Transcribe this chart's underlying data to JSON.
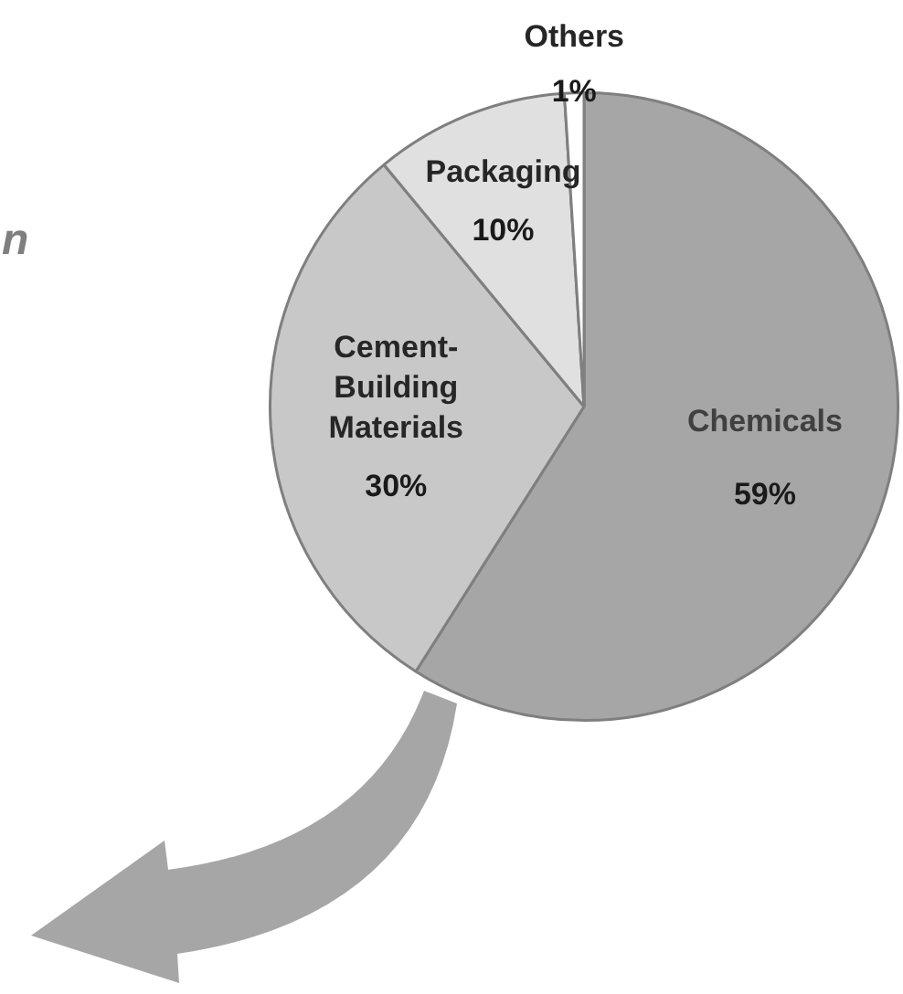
{
  "chart_data": {
    "type": "pie",
    "categories": [
      "Chemicals",
      "Cement-Building Materials",
      "Packaging",
      "Others"
    ],
    "values": [
      59,
      30,
      10,
      1
    ],
    "colors": [
      "#a6a6a6",
      "#c8c8c8",
      "#e0e0e0",
      "#ffffff"
    ],
    "value_labels": [
      "59%",
      "30%",
      "10%",
      "1%"
    ],
    "annotations": [
      "n"
    ],
    "legend": false
  }
}
